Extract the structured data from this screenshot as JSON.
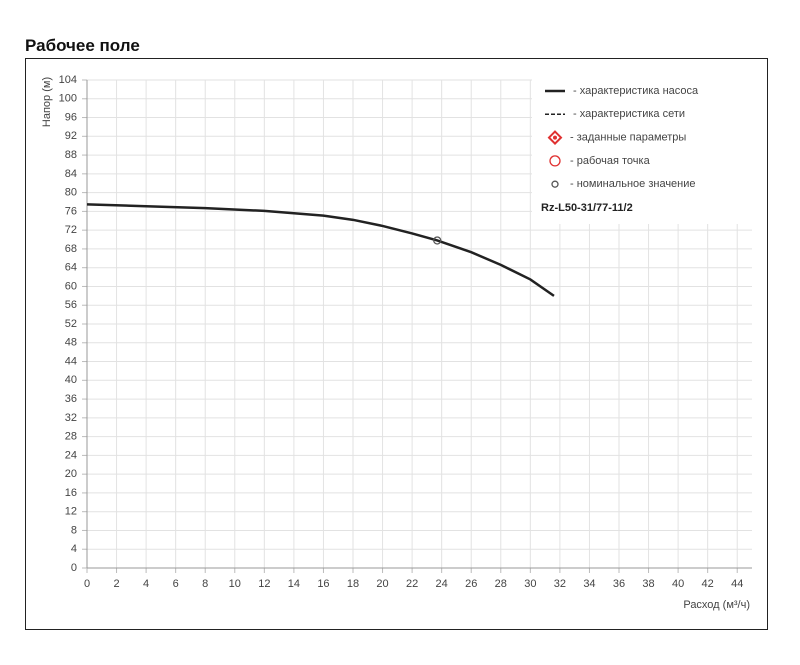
{
  "header": {
    "title": "Рабочее поле"
  },
  "chart_data": {
    "type": "line",
    "x_label": "Расход (м³/ч)",
    "y_label": "Напор (м)",
    "model": "Rz-L50-31/77-11/2",
    "xlim": [
      0,
      45
    ],
    "ylim": [
      0,
      104
    ],
    "xticks": [
      0,
      2,
      4,
      6,
      8,
      10,
      12,
      14,
      16,
      18,
      20,
      22,
      24,
      26,
      28,
      30,
      32,
      34,
      36,
      38,
      40,
      42,
      44
    ],
    "yticks": [
      0,
      4,
      8,
      12,
      16,
      20,
      24,
      28,
      32,
      36,
      40,
      44,
      48,
      52,
      56,
      60,
      64,
      68,
      72,
      76,
      80,
      84,
      88,
      92,
      96,
      100,
      104
    ],
    "grid": true,
    "series": [
      {
        "name": "- характеристика насоса",
        "color": "#222222",
        "marker": "line",
        "x": [
          0,
          4,
          8,
          12,
          16,
          18,
          20,
          22,
          23.7,
          26,
          28,
          30,
          31.6
        ],
        "values": [
          77.5,
          77.1,
          76.7,
          76.1,
          75.1,
          74.2,
          72.9,
          71.3,
          69.8,
          67.3,
          64.6,
          61.5,
          58
        ]
      },
      {
        "name": "- характеристика сети",
        "color": "#222222",
        "marker": "dash",
        "x": [],
        "values": []
      },
      {
        "name": "- заданные параметры",
        "color": "#e03030",
        "marker": "diamond",
        "x": [],
        "values": []
      },
      {
        "name": "- рабочая точка",
        "color": "#e03030",
        "marker": "ring",
        "x": [],
        "values": []
      },
      {
        "name": "- номинальное значение",
        "color": "#555555",
        "marker": "dot",
        "x": [
          23.7
        ],
        "values": [
          69.8
        ]
      }
    ]
  }
}
